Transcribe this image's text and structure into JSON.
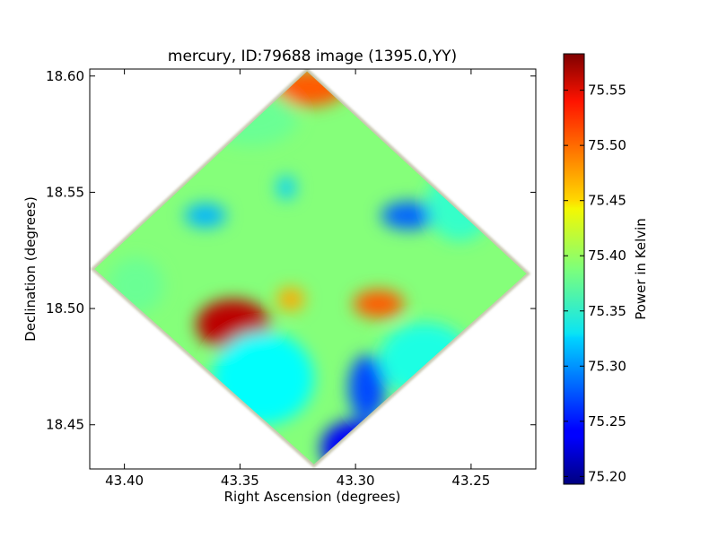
{
  "chart_data": {
    "type": "heatmap",
    "title": "mercury, ID:79688 image (1395.0,YY)",
    "xlabel": "Right Ascension (degrees)",
    "ylabel": "Declination (degrees)",
    "xlim": [
      43.415,
      43.222
    ],
    "ylim": [
      18.431,
      18.603
    ],
    "x_ticks": [
      43.4,
      43.35,
      43.3,
      43.25
    ],
    "x_tick_labels": [
      "43.40",
      "43.35",
      "43.30",
      "43.25"
    ],
    "y_ticks": [
      18.45,
      18.5,
      18.55,
      18.6
    ],
    "y_tick_labels": [
      "18.45",
      "18.50",
      "18.55",
      "18.60"
    ],
    "colorbar": {
      "label": "Power in Kelvin",
      "colormap": "jet",
      "range": [
        75.193,
        75.583
      ],
      "ticks": [
        75.2,
        75.25,
        75.3,
        75.35,
        75.4,
        75.45,
        75.5,
        75.55
      ],
      "tick_labels": [
        "75.20",
        "75.25",
        "75.30",
        "75.35",
        "75.40",
        "75.45",
        "75.50",
        "75.55"
      ]
    },
    "background_level": 75.39,
    "footprint": [
      {
        "ra": 43.321,
        "dec": 18.602
      },
      {
        "ra": 43.226,
        "dec": 18.515
      },
      {
        "ra": 43.318,
        "dec": 18.433
      },
      {
        "ra": 43.413,
        "dec": 18.517
      }
    ],
    "features": [
      {
        "ra": 43.353,
        "dec": 18.493,
        "value": 75.56,
        "ra_radius": 0.016,
        "dec_radius": 0.011
      },
      {
        "ra": 43.29,
        "dec": 18.502,
        "value": 75.5,
        "ra_radius": 0.011,
        "dec_radius": 0.006
      },
      {
        "ra": 43.32,
        "dec": 18.595,
        "value": 75.5,
        "ra_radius": 0.016,
        "dec_radius": 0.008
      },
      {
        "ra": 43.328,
        "dec": 18.504,
        "value": 75.47,
        "ra_radius": 0.006,
        "dec_radius": 0.005
      },
      {
        "ra": 43.3,
        "dec": 18.44,
        "value": 75.24,
        "ra_radius": 0.015,
        "dec_radius": 0.012
      },
      {
        "ra": 43.295,
        "dec": 18.466,
        "value": 75.27,
        "ra_radius": 0.008,
        "dec_radius": 0.014
      },
      {
        "ra": 43.277,
        "dec": 18.54,
        "value": 75.28,
        "ra_radius": 0.012,
        "dec_radius": 0.006
      },
      {
        "ra": 43.365,
        "dec": 18.54,
        "value": 75.31,
        "ra_radius": 0.009,
        "dec_radius": 0.005
      },
      {
        "ra": 43.33,
        "dec": 18.552,
        "value": 75.32,
        "ra_radius": 0.004,
        "dec_radius": 0.005
      },
      {
        "ra": 43.34,
        "dec": 18.47,
        "value": 75.34,
        "ra_radius": 0.022,
        "dec_radius": 0.02
      },
      {
        "ra": 43.27,
        "dec": 18.478,
        "value": 75.35,
        "ra_radius": 0.02,
        "dec_radius": 0.016
      },
      {
        "ra": 43.345,
        "dec": 18.582,
        "value": 75.38,
        "ra_radius": 0.02,
        "dec_radius": 0.012
      },
      {
        "ra": 43.395,
        "dec": 18.51,
        "value": 75.38,
        "ra_radius": 0.012,
        "dec_radius": 0.012
      },
      {
        "ra": 43.255,
        "dec": 18.545,
        "value": 75.36,
        "ra_radius": 0.014,
        "dec_radius": 0.016
      }
    ]
  }
}
